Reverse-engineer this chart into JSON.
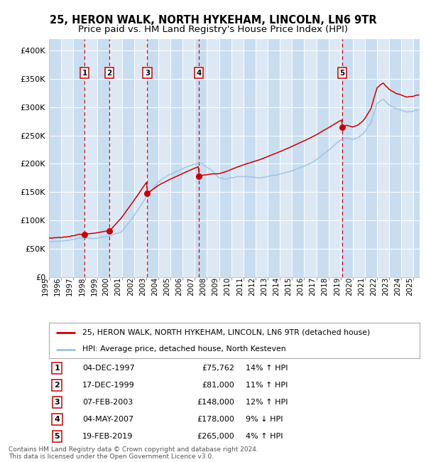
{
  "title": "25, HERON WALK, NORTH HYKEHAM, LINCOLN, LN6 9TR",
  "subtitle": "Price paid vs. HM Land Registry's House Price Index (HPI)",
  "xlim": [
    1995.0,
    2025.5
  ],
  "ylim": [
    0,
    420000
  ],
  "yticks": [
    0,
    50000,
    100000,
    150000,
    200000,
    250000,
    300000,
    350000,
    400000
  ],
  "ytick_labels": [
    "£0",
    "£50K",
    "£100K",
    "£150K",
    "£200K",
    "£250K",
    "£300K",
    "£350K",
    "£400K"
  ],
  "xtick_years": [
    1995,
    1996,
    1997,
    1998,
    1999,
    2000,
    2001,
    2002,
    2003,
    2004,
    2005,
    2006,
    2007,
    2008,
    2009,
    2010,
    2011,
    2012,
    2013,
    2014,
    2015,
    2016,
    2017,
    2018,
    2019,
    2020,
    2021,
    2022,
    2023,
    2024,
    2025
  ],
  "plot_background": "#dce9f5",
  "grid_color": "#ffffff",
  "house_color": "#cc0000",
  "hpi_color": "#99c4e0",
  "sale_marker_color": "#cc0000",
  "vline_color": "#cc0000",
  "alt_band_color": "#c2d8ee",
  "sales": [
    {
      "num": 1,
      "year": 1997.92,
      "price": 75762,
      "label": "04-DEC-1997",
      "amount": "£75,762",
      "change": "14% ↑ HPI"
    },
    {
      "num": 2,
      "year": 1999.96,
      "price": 81000,
      "label": "17-DEC-1999",
      "amount": "£81,000",
      "change": "11% ↑ HPI"
    },
    {
      "num": 3,
      "year": 2003.09,
      "price": 148000,
      "label": "07-FEB-2003",
      "amount": "£148,000",
      "change": "12% ↑ HPI"
    },
    {
      "num": 4,
      "year": 2007.34,
      "price": 178000,
      "label": "04-MAY-2007",
      "amount": "£178,000",
      "change": "9% ↓ HPI"
    },
    {
      "num": 5,
      "year": 2019.12,
      "price": 265000,
      "label": "19-FEB-2019",
      "amount": "£265,000",
      "change": "4% ↑ HPI"
    }
  ],
  "legend_house": "25, HERON WALK, NORTH HYKEHAM, LINCOLN, LN6 9TR (detached house)",
  "legend_hpi": "HPI: Average price, detached house, North Kesteven",
  "footer": "Contains HM Land Registry data © Crown copyright and database right 2024.\nThis data is licensed under the Open Government Licence v3.0.",
  "title_fontsize": 10.5,
  "subtitle_fontsize": 9.5,
  "axis_fontsize": 8,
  "label_fontsize": 7.5
}
